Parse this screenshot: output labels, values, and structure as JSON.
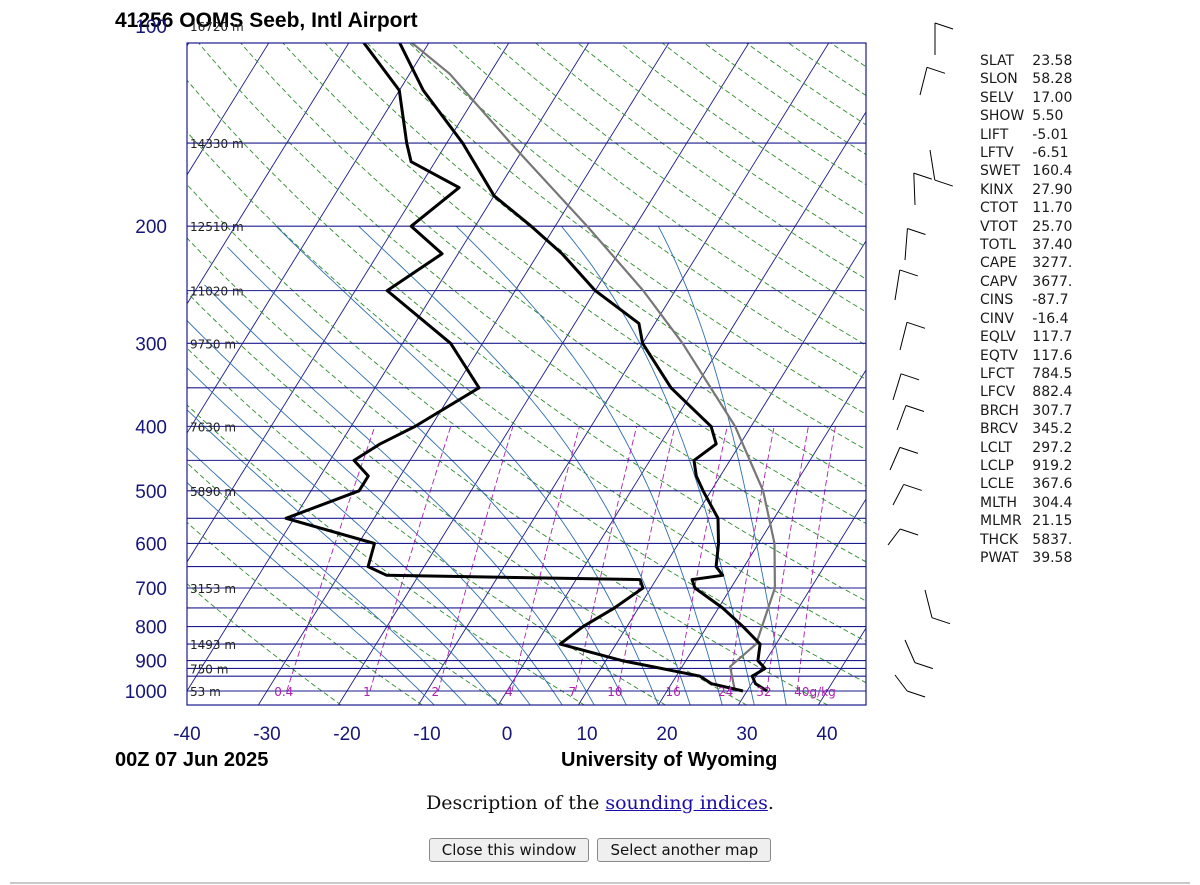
{
  "chart_data": {
    "type": "skew-t",
    "title": "41256 OOMS Seeb, Intl Airport",
    "footer_left": "00Z 07 Jun 2025",
    "footer_right": "University of Wyoming",
    "x_ticks": [
      "-40",
      "-30",
      "-20",
      "-10",
      "0",
      "10",
      "20",
      "30",
      "40"
    ],
    "x_tick_values": [
      -40,
      -30,
      -20,
      -10,
      0,
      10,
      20,
      30,
      40
    ],
    "pressure_labels": [
      "100",
      "200",
      "300",
      "400",
      "500",
      "600",
      "700",
      "800",
      "900",
      "1000"
    ],
    "pressure_label_values": [
      100,
      200,
      300,
      400,
      500,
      600,
      700,
      800,
      900,
      1000
    ],
    "pressure_lines": [
      100,
      150,
      200,
      250,
      300,
      350,
      400,
      450,
      500,
      550,
      600,
      650,
      700,
      750,
      800,
      850,
      900,
      925,
      950,
      1000
    ],
    "height_labels": [
      {
        "p": 100,
        "label": "16720 m"
      },
      {
        "p": 150,
        "label": "14330 m"
      },
      {
        "p": 200,
        "label": "12510 m"
      },
      {
        "p": 250,
        "label": "11020 m"
      },
      {
        "p": 300,
        "label": "9750 m"
      },
      {
        "p": 400,
        "label": "7630 m"
      },
      {
        "p": 500,
        "label": "5890 m"
      },
      {
        "p": 700,
        "label": "3153 m"
      },
      {
        "p": 850,
        "label": "1493 m"
      },
      {
        "p": 925,
        "label": "750 m"
      },
      {
        "p": 1000,
        "label": "53 m"
      }
    ],
    "mixing_ratio_labels": [
      "0.4",
      "1",
      "2",
      "4",
      "7",
      "10",
      "16",
      "24",
      "32",
      "40g/kg"
    ],
    "mixing_ratio_values": [
      0.4,
      1,
      2,
      4,
      7,
      10,
      16,
      24,
      32,
      40
    ],
    "temperature": [
      [
        1000,
        32.5
      ],
      [
        975,
        30.5
      ],
      [
        950,
        29.5
      ],
      [
        925,
        30.5
      ],
      [
        900,
        29
      ],
      [
        850,
        28
      ],
      [
        800,
        24.5
      ],
      [
        750,
        20.5
      ],
      [
        700,
        15.5
      ],
      [
        680,
        14.5
      ],
      [
        670,
        18
      ],
      [
        650,
        16.5
      ],
      [
        600,
        15
      ],
      [
        550,
        13
      ],
      [
        500,
        9
      ],
      [
        475,
        7
      ],
      [
        450,
        5.5
      ],
      [
        425,
        7
      ],
      [
        400,
        5
      ],
      [
        350,
        -3
      ],
      [
        300,
        -10
      ],
      [
        280,
        -12
      ],
      [
        250,
        -20
      ],
      [
        220,
        -27
      ],
      [
        200,
        -33
      ],
      [
        180,
        -40
      ],
      [
        150,
        -48
      ],
      [
        125,
        -57
      ],
      [
        100,
        -66
      ]
    ],
    "dewpoint": [
      [
        1000,
        29.5
      ],
      [
        975,
        25
      ],
      [
        950,
        23
      ],
      [
        900,
        12
      ],
      [
        850,
        3
      ],
      [
        800,
        4.5
      ],
      [
        750,
        7
      ],
      [
        700,
        9
      ],
      [
        680,
        8
      ],
      [
        670,
        -24
      ],
      [
        650,
        -27
      ],
      [
        600,
        -28
      ],
      [
        550,
        -41
      ],
      [
        500,
        -34
      ],
      [
        475,
        -34
      ],
      [
        450,
        -37
      ],
      [
        425,
        -35
      ],
      [
        400,
        -32
      ],
      [
        350,
        -27
      ],
      [
        300,
        -34
      ],
      [
        250,
        -46
      ],
      [
        220,
        -42
      ],
      [
        200,
        -48
      ],
      [
        175,
        -45
      ],
      [
        160,
        -53
      ],
      [
        150,
        -55
      ],
      [
        125,
        -60
      ],
      [
        100,
        -71
      ]
    ],
    "parcel": [
      [
        1000,
        28.5
      ],
      [
        919,
        26
      ],
      [
        850,
        27.5
      ],
      [
        700,
        25.5
      ],
      [
        600,
        22
      ],
      [
        500,
        16.5
      ],
      [
        400,
        8
      ],
      [
        300,
        -5
      ],
      [
        250,
        -14
      ],
      [
        200,
        -26
      ],
      [
        150,
        -42
      ],
      [
        118,
        -55
      ],
      [
        100,
        -66
      ]
    ],
    "indices": [
      {
        "key": "SLAT",
        "value": "23.58"
      },
      {
        "key": "SLON",
        "value": "58.28"
      },
      {
        "key": "SELV",
        "value": "17.00"
      },
      {
        "key": "SHOW",
        "value": "5.50"
      },
      {
        "key": "LIFT",
        "value": "-5.01"
      },
      {
        "key": "LFTV",
        "value": "-6.51"
      },
      {
        "key": "SWET",
        "value": "160.4"
      },
      {
        "key": "KINX",
        "value": "27.90"
      },
      {
        "key": "CTOT",
        "value": "11.70"
      },
      {
        "key": "VTOT",
        "value": "25.70"
      },
      {
        "key": "TOTL",
        "value": "37.40"
      },
      {
        "key": "CAPE",
        "value": "3277."
      },
      {
        "key": "CAPV",
        "value": "3677."
      },
      {
        "key": "CINS",
        "value": "-87.7"
      },
      {
        "key": "CINV",
        "value": "-16.4"
      },
      {
        "key": "EQLV",
        "value": "117.7"
      },
      {
        "key": "EQTV",
        "value": "117.6"
      },
      {
        "key": "LFCT",
        "value": "784.5"
      },
      {
        "key": "LFCV",
        "value": "882.4"
      },
      {
        "key": "BRCH",
        "value": "307.7"
      },
      {
        "key": "BRCV",
        "value": "345.2"
      },
      {
        "key": "LCLT",
        "value": "297.2"
      },
      {
        "key": "LCLP",
        "value": "919.2"
      },
      {
        "key": "LCLE",
        "value": "367.6"
      },
      {
        "key": "MLTH",
        "value": "304.4"
      },
      {
        "key": "MLMR",
        "value": "21.15"
      },
      {
        "key": "THCK",
        "value": "5837."
      },
      {
        "key": "PWAT",
        "value": "39.58"
      }
    ],
    "colors": {
      "isobar": "#1b1b8c",
      "isotherm": "#1b1b8c",
      "dry_adiabat": "#2e8b2e",
      "moist_adiabat": "#2f6fb0",
      "mixing_ratio": "#b020b0",
      "temperature": "#000000",
      "parcel": "#777777",
      "axis_text": "#16167a",
      "title_text": "#000000"
    }
  },
  "description": {
    "prefix": "Description of the ",
    "link_text": "sounding indices",
    "suffix": "."
  },
  "buttons": {
    "close_label": "Close this window",
    "select_label": "Select another map"
  }
}
